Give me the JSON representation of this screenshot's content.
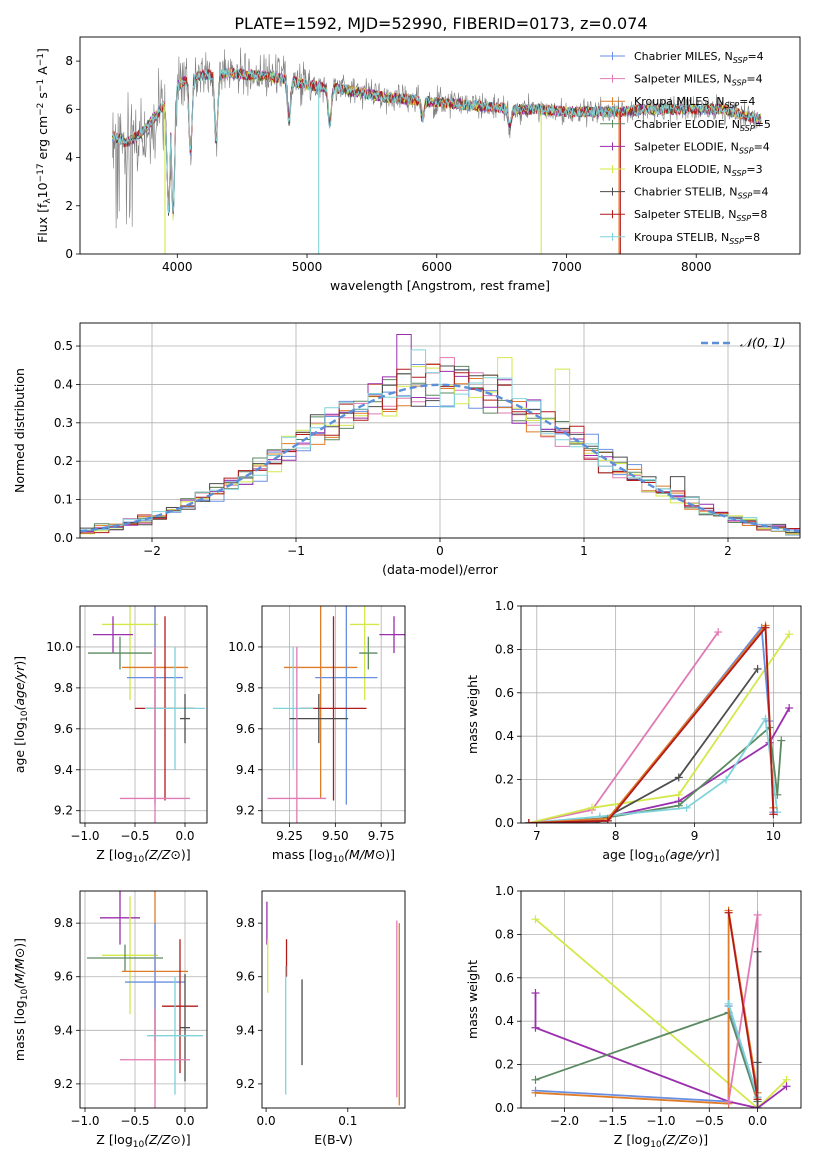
{
  "title": "PLATE=1592, MJD=52990, FIBERID=0173, z=0.074",
  "colors": {
    "Chabrier MILES": "#6a8fe0",
    "Salpeter MILES": "#e07ab4",
    "Kroupa MILES": "#e07b28",
    "Chabrier ELODIE": "#5b8a62",
    "Salpeter ELODIE": "#9b2fae",
    "Kroupa ELODIE": "#d4e84b",
    "Chabrier STELIB": "#4d4d4d",
    "Salpeter STELIB": "#b31b1b",
    "Kroupa STELIB": "#7fd3d9",
    "data": "#7f7f7f",
    "normal": "#5b8fd8"
  },
  "chart_data": [
    {
      "id": "spectrum",
      "type": "line",
      "xlabel": "wavelength [Angstrom, rest frame]",
      "ylabel_parts": [
        "Flux [f",
        "λ",
        "10",
        "−17",
        " erg cm",
        "−2",
        " s",
        "−1",
        " A",
        "−1",
        "]"
      ],
      "xlim": [
        3250,
        8800
      ],
      "ylim": [
        0,
        9
      ],
      "xticks": [
        4000,
        5000,
        6000,
        7000,
        8000
      ],
      "yticks": [
        0,
        2,
        4,
        6,
        8
      ],
      "grid": false,
      "legend_position": "right",
      "legend": [
        {
          "model": "Chabrier MILES",
          "label": "Chabrier MILES, N",
          "sub": "SSP",
          "suffix": "=4"
        },
        {
          "model": "Salpeter MILES",
          "label": "Salpeter MILES, N",
          "sub": "SSP",
          "suffix": "=4"
        },
        {
          "model": "Kroupa MILES",
          "label": "Kroupa MILES, N",
          "sub": "SSP",
          "suffix": "=4"
        },
        {
          "model": "Chabrier ELODIE",
          "label": "Chabrier ELODIE, N",
          "sub": "SSP",
          "suffix": "=5"
        },
        {
          "model": "Salpeter ELODIE",
          "label": "Salpeter ELODIE, N",
          "sub": "SSP",
          "suffix": "=4"
        },
        {
          "model": "Kroupa ELODIE",
          "label": "Kroupa ELODIE, N",
          "sub": "SSP",
          "suffix": "=3"
        },
        {
          "model": "Chabrier STELIB",
          "label": "Chabrier STELIB, N",
          "sub": "SSP",
          "suffix": "=4"
        },
        {
          "model": "Salpeter STELIB",
          "label": "Salpeter STELIB, N",
          "sub": "SSP",
          "suffix": "=8"
        },
        {
          "model": "Kroupa STELIB",
          "label": "Kroupa STELIB, N",
          "sub": "SSP",
          "suffix": "=8"
        }
      ],
      "continuum": [
        [
          3500,
          4.9
        ],
        [
          3600,
          4.6
        ],
        [
          3700,
          4.9
        ],
        [
          3800,
          5.5
        ],
        [
          3900,
          6.2
        ],
        [
          4000,
          7.0
        ],
        [
          4100,
          7.3
        ],
        [
          4200,
          7.4
        ],
        [
          4400,
          7.5
        ],
        [
          4600,
          7.4
        ],
        [
          4800,
          7.3
        ],
        [
          5000,
          7.0
        ],
        [
          5200,
          6.9
        ],
        [
          5400,
          6.7
        ],
        [
          5600,
          6.5
        ],
        [
          5800,
          6.4
        ],
        [
          6000,
          6.3
        ],
        [
          6200,
          6.2
        ],
        [
          6400,
          6.1
        ],
        [
          6600,
          6.0
        ],
        [
          6800,
          6.0
        ],
        [
          7000,
          5.9
        ],
        [
          7200,
          5.9
        ],
        [
          7400,
          5.9
        ],
        [
          7600,
          6.0
        ],
        [
          7800,
          6.0
        ],
        [
          8000,
          6.0
        ],
        [
          8200,
          6.0
        ],
        [
          8400,
          5.7
        ],
        [
          8500,
          5.6
        ]
      ],
      "model_dips": [
        [
          3933,
          1.8
        ],
        [
          3968,
          1.6
        ],
        [
          4102,
          4.2
        ],
        [
          4300,
          4.7
        ],
        [
          4861,
          5.5
        ],
        [
          5175,
          5.4
        ],
        [
          5890,
          5.6
        ],
        [
          6563,
          5.3
        ]
      ],
      "drops": [
        {
          "x": 3905,
          "model": "Kroupa ELODIE"
        },
        {
          "x": 5090,
          "model": "Kroupa STELIB"
        },
        {
          "x": 6805,
          "model": "Kroupa ELODIE"
        },
        {
          "x": 7405,
          "model": "Kroupa MILES"
        },
        {
          "x": 7415,
          "model": "Salpeter STELIB"
        }
      ]
    },
    {
      "id": "residuals",
      "type": "bar",
      "xlabel": "(data-model)/error",
      "ylabel": "Normed distribution",
      "xlim": [
        -2.5,
        2.5
      ],
      "ylim": [
        0,
        0.56
      ],
      "xticks": [
        -2,
        -1,
        0,
        1,
        2
      ],
      "yticks": [
        0.0,
        0.1,
        0.2,
        0.3,
        0.4,
        0.5
      ],
      "grid": true,
      "bin_width": 0.1,
      "legend_label": "𝒩(0, 1)",
      "legend_position": "top-right",
      "spikes": [
        {
          "x": -0.3,
          "model": "Salpeter ELODIE",
          "value": 0.53
        },
        {
          "x": -0.2,
          "model": "Kroupa STELIB",
          "value": 0.49
        },
        {
          "x": 0.4,
          "model": "Kroupa ELODIE",
          "value": 0.47
        },
        {
          "x": 0.8,
          "model": "Kroupa ELODIE",
          "value": 0.44
        },
        {
          "x": 0.0,
          "model": "Salpeter MILES",
          "value": 0.47
        },
        {
          "x": 1.6,
          "model": "Chabrier STELIB",
          "value": 0.16
        }
      ]
    },
    {
      "id": "age-vs-Z",
      "type": "scatter",
      "xlabel": "Z [log10(Z/Z⊙)]",
      "ylabel": "age  [log10(age/yr)]",
      "xlim": [
        -1.05,
        0.22
      ],
      "ylim": [
        9.14,
        10.2
      ],
      "xticks": [
        -1.0,
        -0.5,
        0.0
      ],
      "yticks": [
        9.2,
        9.4,
        9.6,
        9.8,
        10.0
      ],
      "grid": true,
      "points": [
        {
          "model": "Kroupa ELODIE",
          "x": -0.55,
          "xerr": 0.28,
          "y": 10.11,
          "yerr": 0.37
        },
        {
          "model": "Salpeter ELODIE",
          "x": -0.72,
          "xerr": 0.2,
          "y": 10.06,
          "yerr": 0.09
        },
        {
          "model": "Chabrier ELODIE",
          "x": -0.65,
          "xerr": 0.32,
          "y": 9.97,
          "yerr": 0.08
        },
        {
          "model": "Kroupa MILES",
          "x": -0.3,
          "xerr": 0.33,
          "y": 9.9,
          "yerr": 0.64
        },
        {
          "model": "Chabrier MILES",
          "x": -0.3,
          "xerr": 0.28,
          "y": 9.85,
          "yerr": 0.62
        },
        {
          "model": "Salpeter STELIB",
          "x": -0.2,
          "xerr": 0.3,
          "y": 9.7,
          "yerr": 0.45
        },
        {
          "model": "Kroupa STELIB",
          "x": -0.1,
          "xerr": 0.3,
          "y": 9.7,
          "yerr": 0.3
        },
        {
          "model": "Chabrier STELIB",
          "x": 0.0,
          "xerr": 0.05,
          "y": 9.65,
          "yerr": 0.12
        },
        {
          "model": "Salpeter MILES",
          "x": -0.3,
          "xerr": 0.35,
          "y": 9.26,
          "yerr": 0.74
        }
      ]
    },
    {
      "id": "age-vs-mass",
      "type": "scatter",
      "xlabel": "mass [log10(M/M⊙)]",
      "ylabel": "",
      "xlim": [
        9.1,
        9.88
      ],
      "ylim": [
        9.14,
        10.2
      ],
      "xticks": [
        9.25,
        9.5,
        9.75
      ],
      "yticks": [
        9.2,
        9.4,
        9.6,
        9.8,
        10.0
      ],
      "grid": true,
      "points": [
        {
          "model": "Kroupa ELODIE",
          "x": 9.66,
          "xerr": 0.08,
          "y": 10.11,
          "yerr": 0.37
        },
        {
          "model": "Salpeter ELODIE",
          "x": 9.82,
          "xerr": 0.08,
          "y": 10.06,
          "yerr": 0.09
        },
        {
          "model": "Chabrier ELODIE",
          "x": 9.68,
          "xerr": 0.05,
          "y": 9.97,
          "yerr": 0.08
        },
        {
          "model": "Kroupa MILES",
          "x": 9.42,
          "xerr": 0.2,
          "y": 9.9,
          "yerr": 0.64
        },
        {
          "model": "Chabrier MILES",
          "x": 9.56,
          "xerr": 0.17,
          "y": 9.85,
          "yerr": 0.62
        },
        {
          "model": "Salpeter STELIB",
          "x": 9.49,
          "xerr": 0.18,
          "y": 9.7,
          "yerr": 0.45
        },
        {
          "model": "Kroupa STELIB",
          "x": 9.27,
          "xerr": 0.11,
          "y": 9.7,
          "yerr": 0.3
        },
        {
          "model": "Chabrier STELIB",
          "x": 9.41,
          "xerr": 0.16,
          "y": 9.65,
          "yerr": 0.12
        },
        {
          "model": "Salpeter MILES",
          "x": 9.29,
          "xerr": 0.16,
          "y": 9.26,
          "yerr": 0.74
        }
      ]
    },
    {
      "id": "weight-vs-age",
      "type": "line",
      "xlabel": "age  [log10(age/yr)]",
      "ylabel": "mass weight",
      "xlim": [
        6.8,
        10.35
      ],
      "ylim": [
        0,
        1.0
      ],
      "xticks": [
        7,
        8,
        9,
        10
      ],
      "yticks": [
        0.0,
        0.2,
        0.4,
        0.6,
        0.8,
        1.0
      ],
      "grid": true,
      "series": [
        {
          "model": "Salpeter MILES",
          "points": [
            [
              6.9,
              0.0
            ],
            [
              7.7,
              0.06
            ],
            [
              9.3,
              0.88
            ]
          ]
        },
        {
          "model": "Kroupa ELODIE",
          "points": [
            [
              6.9,
              0.0
            ],
            [
              7.7,
              0.07
            ],
            [
              8.8,
              0.13
            ],
            [
              10.2,
              0.87
            ]
          ]
        },
        {
          "model": "Chabrier STELIB",
          "points": [
            [
              6.9,
              0.0
            ],
            [
              7.75,
              0.0
            ],
            [
              8.8,
              0.21
            ],
            [
              9.8,
              0.71
            ]
          ]
        },
        {
          "model": "Salpeter ELODIE",
          "points": [
            [
              6.9,
              0.0
            ],
            [
              7.8,
              0.02
            ],
            [
              8.8,
              0.1
            ],
            [
              9.95,
              0.37
            ],
            [
              10.2,
              0.53
            ]
          ]
        },
        {
          "model": "Chabrier ELODIE",
          "points": [
            [
              6.9,
              0.0
            ],
            [
              7.8,
              0.02
            ],
            [
              8.8,
              0.08
            ],
            [
              9.95,
              0.44
            ],
            [
              10.05,
              0.13
            ],
            [
              10.1,
              0.38
            ]
          ]
        },
        {
          "model": "Kroupa STELIB",
          "points": [
            [
              6.9,
              0.0
            ],
            [
              7.8,
              0.03
            ],
            [
              8.9,
              0.07
            ],
            [
              9.4,
              0.2
            ],
            [
              9.9,
              0.48
            ],
            [
              10.05,
              0.05
            ]
          ]
        },
        {
          "model": "Chabrier MILES",
          "points": [
            [
              6.9,
              0.0
            ],
            [
              7.9,
              0.01
            ],
            [
              9.85,
              0.9
            ],
            [
              9.95,
              0.47
            ],
            [
              10.0,
              0.05
            ]
          ]
        },
        {
          "model": "Kroupa MILES",
          "points": [
            [
              6.9,
              0.0
            ],
            [
              7.9,
              0.02
            ],
            [
              9.9,
              0.91
            ],
            [
              10.0,
              0.07
            ]
          ]
        },
        {
          "model": "Salpeter STELIB",
          "points": [
            [
              6.9,
              0.0
            ],
            [
              7.9,
              0.01
            ],
            [
              9.9,
              0.9
            ],
            [
              10.0,
              0.04
            ]
          ]
        }
      ]
    },
    {
      "id": "mass-vs-Z",
      "type": "scatter",
      "xlabel": "Z [log10(Z/Z⊙)]",
      "ylabel": "mass [log10(M/M⊙)]",
      "xlim": [
        -1.05,
        0.22
      ],
      "ylim": [
        9.11,
        9.92
      ],
      "xticks": [
        -1.0,
        -0.5,
        0.0
      ],
      "yticks": [
        9.2,
        9.4,
        9.6,
        9.8
      ],
      "grid": true,
      "points": [
        {
          "model": "Salpeter ELODIE",
          "x": -0.65,
          "xerr": 0.2,
          "y": 9.82,
          "yerr": 0.1
        },
        {
          "model": "Kroupa ELODIE",
          "x": -0.55,
          "xerr": 0.28,
          "y": 9.68,
          "yerr": 0.22
        },
        {
          "model": "Chabrier ELODIE",
          "x": -0.6,
          "xerr": 0.38,
          "y": 9.67,
          "yerr": 0.05
        },
        {
          "model": "Kroupa MILES",
          "x": -0.3,
          "xerr": 0.33,
          "y": 9.62,
          "yerr": 0.42
        },
        {
          "model": "Chabrier MILES",
          "x": -0.3,
          "xerr": 0.3,
          "y": 9.58,
          "yerr": 0.22
        },
        {
          "model": "Salpeter STELIB",
          "x": -0.05,
          "xerr": 0.18,
          "y": 9.49,
          "yerr": 0.25
        },
        {
          "model": "Chabrier STELIB",
          "x": 0.0,
          "xerr": 0.05,
          "y": 9.41,
          "yerr": 0.2
        },
        {
          "model": "Kroupa STELIB",
          "x": -0.1,
          "xerr": 0.28,
          "y": 9.38,
          "yerr": 0.22
        },
        {
          "model": "Salpeter MILES",
          "x": -0.3,
          "xerr": 0.35,
          "y": 9.29,
          "yerr": 0.19
        }
      ]
    },
    {
      "id": "mass-vs-ebv",
      "type": "scatter",
      "xlabel": "E(B-V)",
      "ylabel": "",
      "xlim": [
        -0.005,
        0.17
      ],
      "ylim": [
        9.11,
        9.92
      ],
      "xticks": [
        0.0,
        0.1
      ],
      "yticks": [
        9.2,
        9.4,
        9.6,
        9.8
      ],
      "grid": false,
      "points": [
        {
          "model": "Salpeter ELODIE",
          "x": 0.001,
          "y": 9.8,
          "yerr": 0.08
        },
        {
          "model": "Kroupa ELODIE",
          "x": 0.002,
          "y": 9.64,
          "yerr": 0.1
        },
        {
          "model": "Salpeter STELIB",
          "x": 0.025,
          "y": 9.67,
          "yerr": 0.07
        },
        {
          "model": "Kroupa STELIB",
          "x": 0.024,
          "y": 9.4,
          "yerr": 0.24
        },
        {
          "model": "Chabrier STELIB",
          "x": 0.044,
          "y": 9.43,
          "yerr": 0.16
        },
        {
          "model": "Salpeter MILES",
          "x": 0.16,
          "y": 9.48,
          "yerr": 0.33
        },
        {
          "model": "Kroupa MILES",
          "x": 0.163,
          "y": 9.46,
          "yerr": 0.34
        }
      ]
    },
    {
      "id": "weight-vs-Z",
      "type": "line",
      "xlabel": "Z [log10(Z/Z⊙)]",
      "ylabel": "mass weight",
      "xlim": [
        -2.45,
        0.45
      ],
      "ylim": [
        0,
        1.0
      ],
      "xticks": [
        -2.0,
        -1.5,
        -1.0,
        -0.5,
        0.0
      ],
      "yticks": [
        0.0,
        0.2,
        0.4,
        0.6,
        0.8,
        1.0
      ],
      "grid": true,
      "series": [
        {
          "model": "Kroupa ELODIE",
          "points": [
            [
              -2.3,
              0.87
            ],
            [
              0.0,
              0.0
            ],
            [
              0.3,
              0.13
            ]
          ]
        },
        {
          "model": "Salpeter ELODIE",
          "points": [
            [
              -2.3,
              0.53
            ],
            [
              -2.3,
              0.37
            ],
            [
              -0.3,
              0.03
            ],
            [
              0.0,
              0.0
            ],
            [
              0.3,
              0.1
            ]
          ]
        },
        {
          "model": "Chabrier ELODIE",
          "points": [
            [
              -2.3,
              0.13
            ],
            [
              -0.3,
              0.44
            ],
            [
              0.0,
              0.03
            ]
          ]
        },
        {
          "model": "Chabrier MILES",
          "points": [
            [
              -2.3,
              0.08
            ],
            [
              -0.3,
              0.03
            ],
            [
              -0.3,
              0.47
            ],
            [
              0.0,
              0.05
            ]
          ]
        },
        {
          "model": "Kroupa MILES",
          "points": [
            [
              -2.3,
              0.07
            ],
            [
              -0.3,
              0.02
            ],
            [
              -0.3,
              0.91
            ],
            [
              0.0,
              0.07
            ]
          ]
        },
        {
          "model": "Salpeter MILES",
          "points": [
            [
              -0.3,
              0.03
            ],
            [
              0.0,
              0.89
            ],
            [
              0.0,
              0.0
            ]
          ]
        },
        {
          "model": "Chabrier STELIB",
          "points": [
            [
              0.0,
              0.72
            ],
            [
              0.0,
              0.21
            ],
            [
              0.0,
              0.0
            ]
          ]
        },
        {
          "model": "Kroupa STELIB",
          "points": [
            [
              -0.3,
              0.48
            ],
            [
              0.0,
              0.05
            ]
          ]
        },
        {
          "model": "Salpeter STELIB",
          "points": [
            [
              -0.3,
              0.9
            ],
            [
              0.0,
              0.04
            ]
          ]
        }
      ]
    }
  ]
}
